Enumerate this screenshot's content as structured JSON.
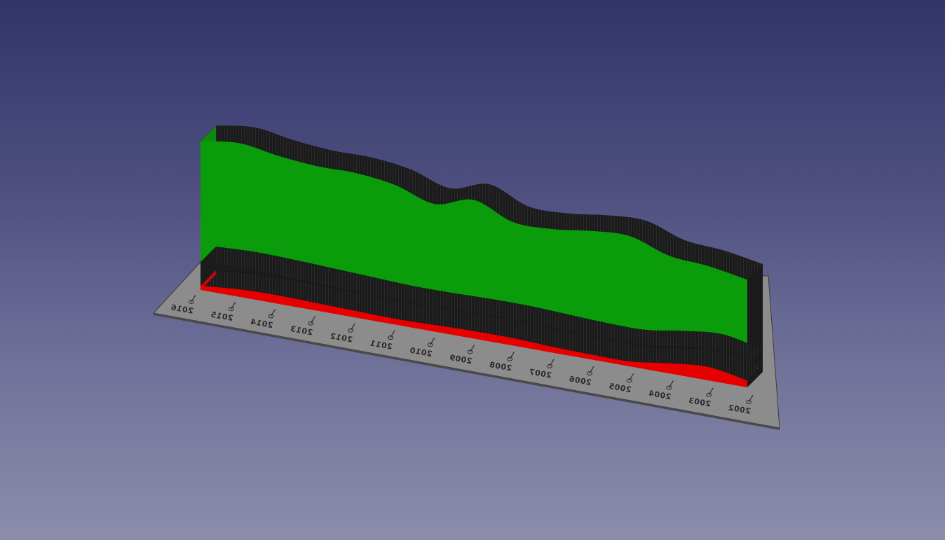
{
  "viewer": {
    "background_top": "#33346a",
    "background_bottom": "#8c8dab"
  },
  "chart_data": {
    "type": "area",
    "title": "",
    "xlabel": "",
    "ylabel": "",
    "categories": [
      "2016",
      "2015",
      "2014",
      "2013",
      "2012",
      "2011",
      "2010",
      "2009",
      "2008",
      "2007",
      "2006",
      "2005",
      "2004",
      "2003",
      "2002"
    ],
    "labels_mirrored": true,
    "series": [
      {
        "color": "#0a9c0a",
        "values": [
          7.2,
          7.4,
          7.1,
          7.0,
          7.1,
          6.9,
          6.2,
          6.8,
          5.9,
          6.0,
          6.4,
          6.5,
          5.4,
          5.0,
          5.1
        ]
      },
      {
        "color": "#1c1c1c",
        "values": [
          1.4,
          1.3,
          1.2,
          1.15,
          1.1,
          1.05,
          1.0,
          1.0,
          1.0,
          1.0,
          0.95,
          0.95,
          1.0,
          1.0,
          0.9
        ]
      },
      {
        "color": "#e60000",
        "values": [
          0.25,
          0.45,
          0.5,
          0.45,
          0.4,
          0.35,
          0.4,
          0.45,
          0.45,
          0.35,
          0.3,
          0.3,
          0.6,
          0.8,
          0.4
        ]
      }
    ],
    "base_plate_color": "#8a8a8a",
    "grid": false
  }
}
